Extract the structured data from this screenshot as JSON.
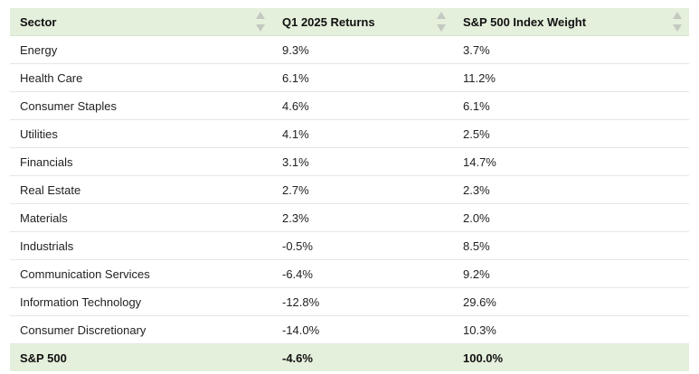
{
  "table": {
    "headers": [
      "Sector",
      "Q1 2025 Returns",
      "S&P 500 Index Weight"
    ],
    "rows": [
      {
        "sector": "Energy",
        "returns": "9.3%",
        "weight": "3.7%"
      },
      {
        "sector": "Health Care",
        "returns": "6.1%",
        "weight": "11.2%"
      },
      {
        "sector": "Consumer Staples",
        "returns": "4.6%",
        "weight": "6.1%"
      },
      {
        "sector": "Utilities",
        "returns": "4.1%",
        "weight": "2.5%"
      },
      {
        "sector": "Financials",
        "returns": "3.1%",
        "weight": "14.7%"
      },
      {
        "sector": "Real Estate",
        "returns": "2.7%",
        "weight": "2.3%"
      },
      {
        "sector": "Materials",
        "returns": "2.3%",
        "weight": "2.0%"
      },
      {
        "sector": "Industrials",
        "returns": "-0.5%",
        "weight": "8.5%"
      },
      {
        "sector": "Communication Services",
        "returns": "-6.4%",
        "weight": "9.2%"
      },
      {
        "sector": "Information Technology",
        "returns": "-12.8%",
        "weight": "29.6%"
      },
      {
        "sector": "Consumer Discretionary",
        "returns": "-14.0%",
        "weight": "10.3%"
      }
    ],
    "footer": {
      "sector": "S&P 500",
      "returns": "-4.6%",
      "weight": "100.0%"
    }
  },
  "colors": {
    "header_bg": "#e4efdc",
    "footer_bg": "#e4efdc",
    "sort_arrow": "#c3c9c0",
    "row_border": "#e6e6e6"
  },
  "icons": {
    "sort": "sort-arrows-icon"
  }
}
